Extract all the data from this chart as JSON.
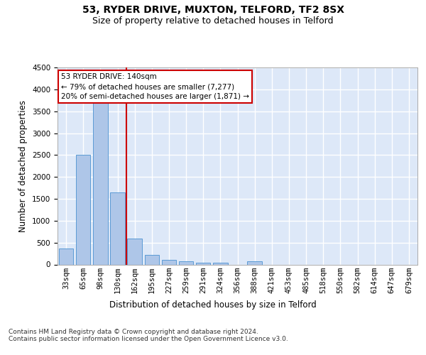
{
  "title_line1": "53, RYDER DRIVE, MUXTON, TELFORD, TF2 8SX",
  "title_line2": "Size of property relative to detached houses in Telford",
  "xlabel": "Distribution of detached houses by size in Telford",
  "ylabel": "Number of detached properties",
  "categories": [
    "33sqm",
    "65sqm",
    "98sqm",
    "130sqm",
    "162sqm",
    "195sqm",
    "227sqm",
    "259sqm",
    "291sqm",
    "324sqm",
    "356sqm",
    "388sqm",
    "421sqm",
    "453sqm",
    "485sqm",
    "518sqm",
    "550sqm",
    "582sqm",
    "614sqm",
    "647sqm",
    "679sqm"
  ],
  "values": [
    370,
    2500,
    3750,
    1650,
    590,
    220,
    105,
    65,
    45,
    45,
    0,
    70,
    0,
    0,
    0,
    0,
    0,
    0,
    0,
    0,
    0
  ],
  "bar_color": "#aec6e8",
  "bar_edge_color": "#5b9bd5",
  "vline_x_idx": 3,
  "vline_color": "#cc0000",
  "annotation_text": "53 RYDER DRIVE: 140sqm\n← 79% of detached houses are smaller (7,277)\n20% of semi-detached houses are larger (1,871) →",
  "annotation_box_color": "#ffffff",
  "annotation_box_edge": "#cc0000",
  "ylim": [
    0,
    4500
  ],
  "yticks": [
    0,
    500,
    1000,
    1500,
    2000,
    2500,
    3000,
    3500,
    4000,
    4500
  ],
  "bg_color": "#dde8f8",
  "grid_color": "#ffffff",
  "footer_text": "Contains HM Land Registry data © Crown copyright and database right 2024.\nContains public sector information licensed under the Open Government Licence v3.0.",
  "title_fontsize": 10,
  "subtitle_fontsize": 9,
  "axis_label_fontsize": 8.5,
  "tick_fontsize": 7.5,
  "footer_fontsize": 6.5
}
